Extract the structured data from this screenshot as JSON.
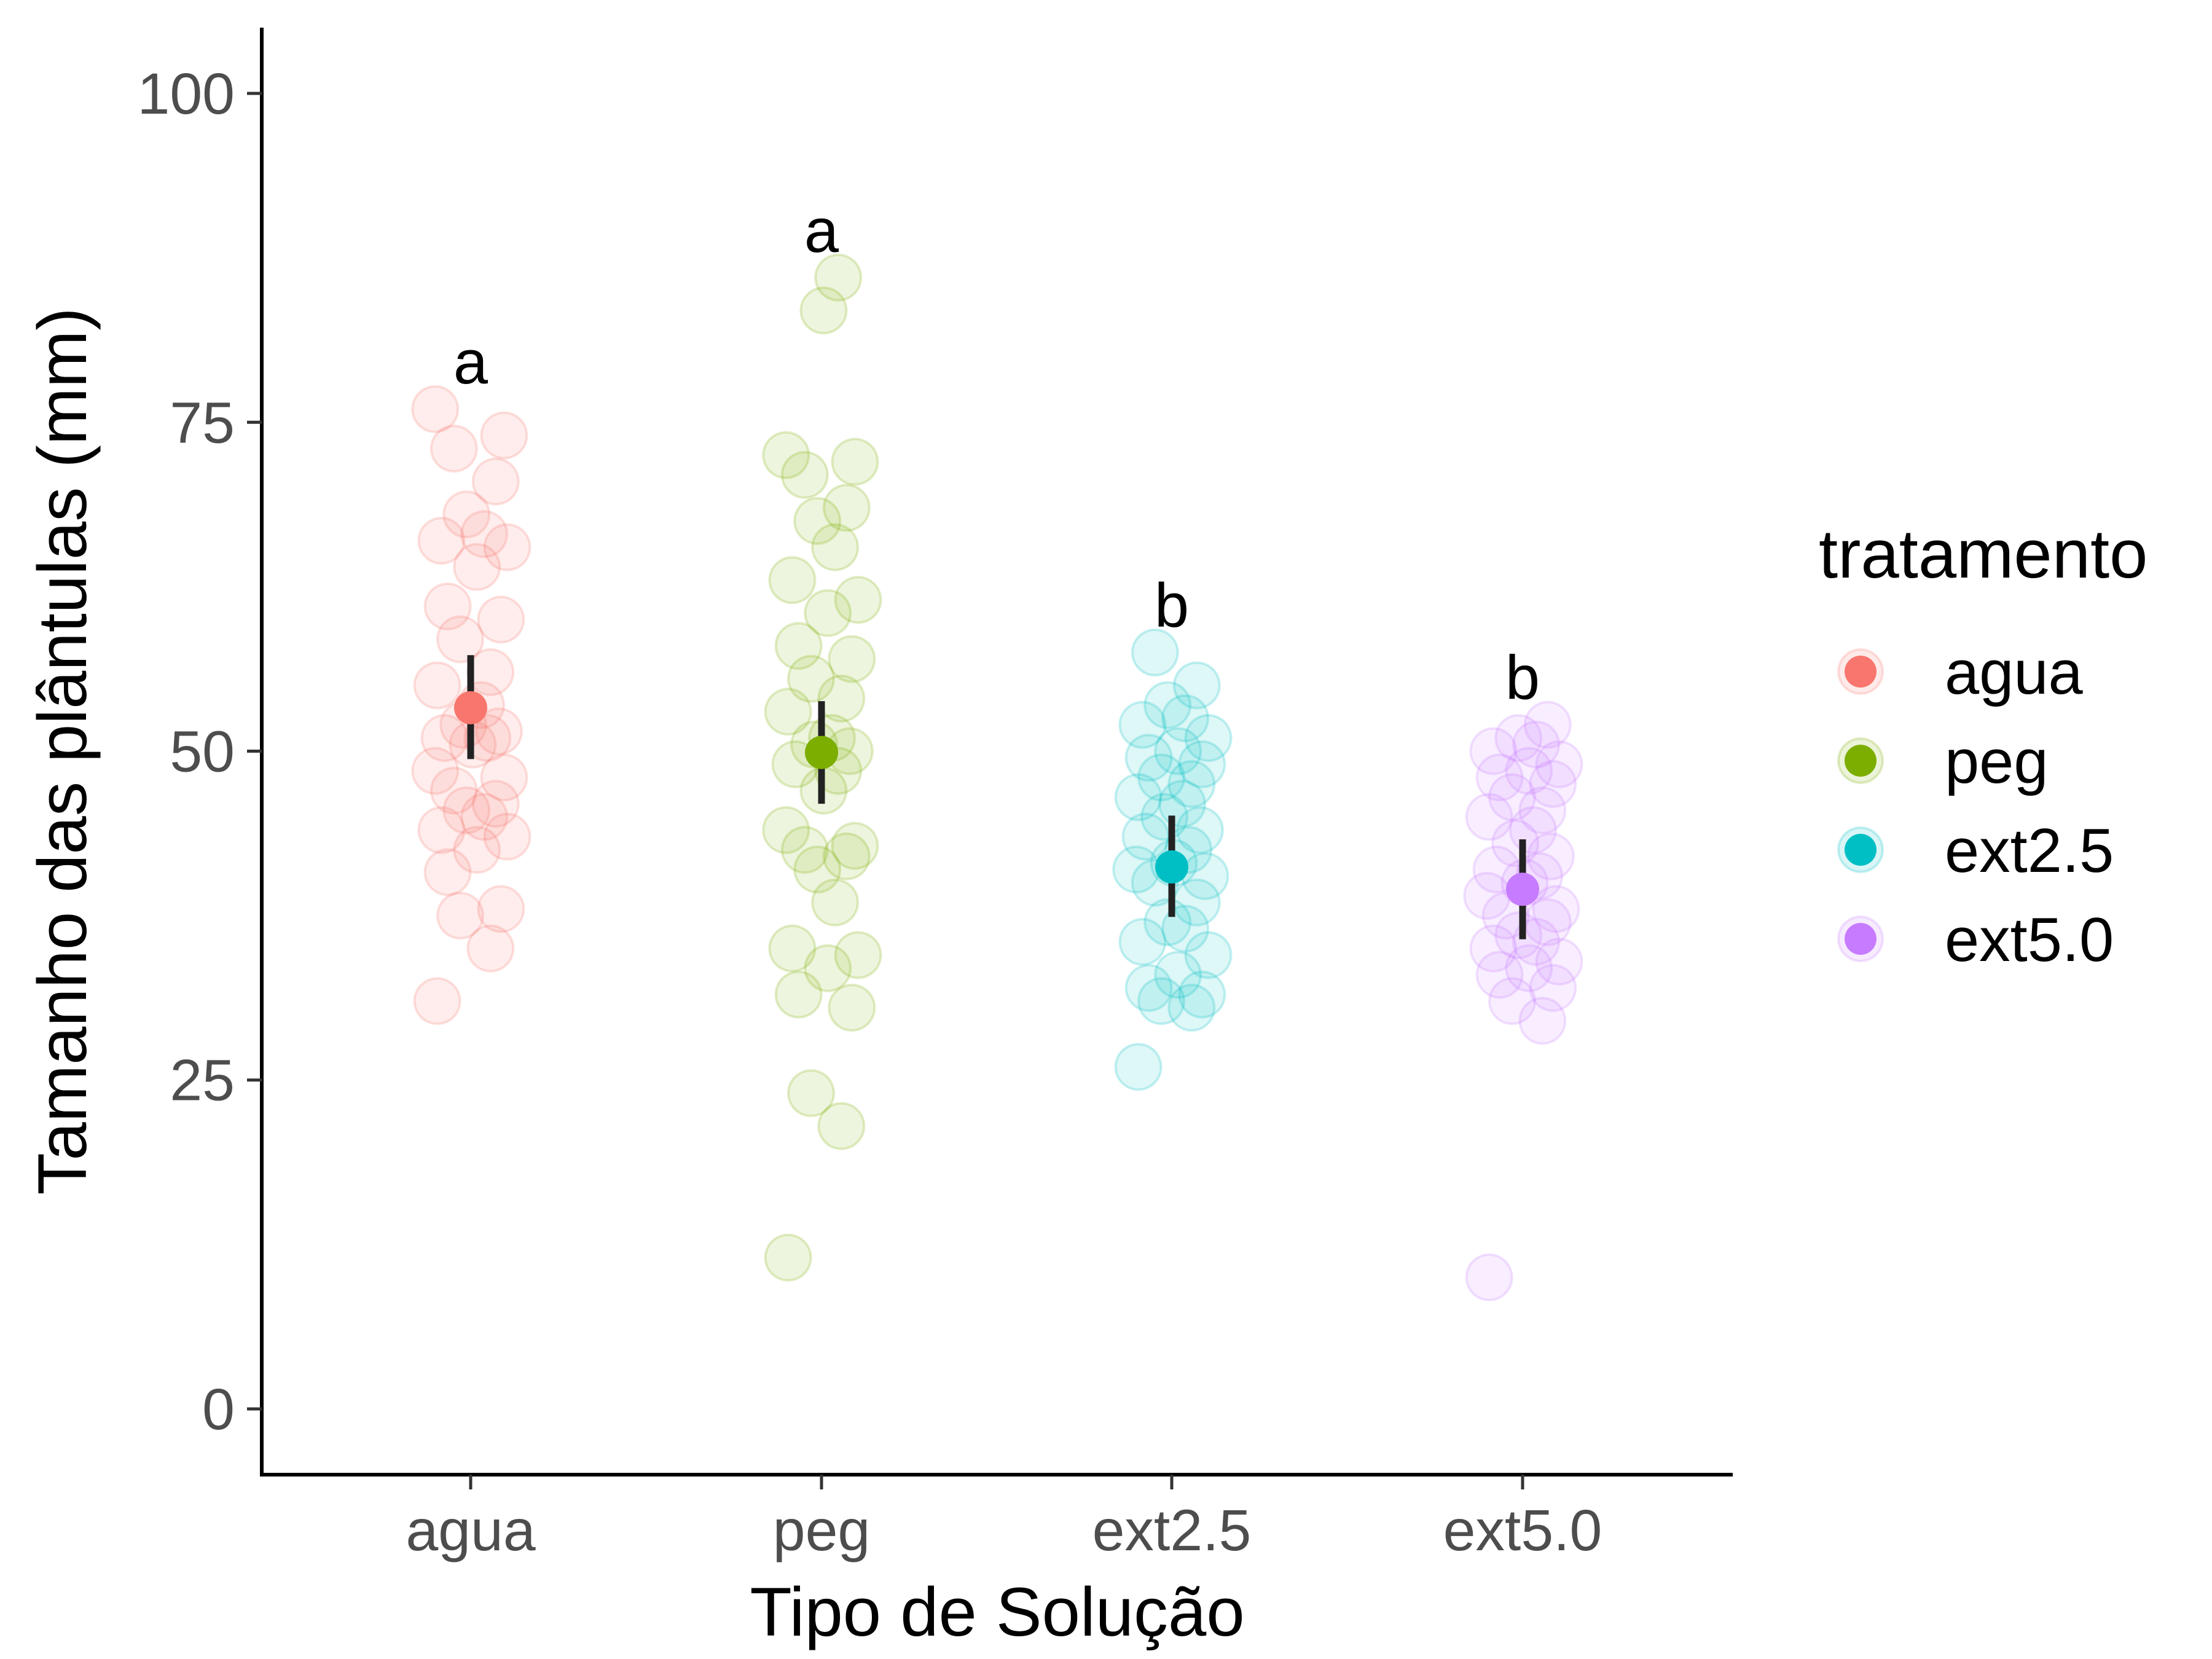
{
  "chart_data": {
    "type": "scatter",
    "xlabel": "Tipo de Solução",
    "ylabel": "Tamanho das plântulas (mm)",
    "categories": [
      "agua",
      "peg",
      "ext2.5",
      "ext5.0"
    ],
    "ylim": [
      -5,
      105
    ],
    "yticks": [
      0,
      25,
      50,
      75,
      100
    ],
    "grid": false,
    "legend": {
      "title": "tratamento",
      "position": "right",
      "entries": [
        "agua",
        "peg",
        "ext2.5",
        "ext5.0"
      ]
    },
    "colors": {
      "agua": "#F8766D",
      "peg": "#7CAE00",
      "ext2.5": "#00BFC4",
      "ext5.0": "#C77CFF"
    },
    "error_bar_color": "#222222",
    "series": [
      {
        "name": "agua",
        "mean": 53.3,
        "ci": [
          49.4,
          57.3
        ],
        "significance": "a",
        "points": [
          31,
          35,
          37.5,
          38,
          40.8,
          42.5,
          43.5,
          44,
          45,
          45.5,
          46,
          47,
          48,
          48.5,
          50.5,
          51,
          51,
          51.5,
          52,
          53.5,
          55,
          56,
          58.5,
          60,
          61,
          64,
          65.5,
          66,
          66.5,
          68,
          70.5,
          73,
          74,
          76
        ]
      },
      {
        "name": "peg",
        "mean": 49.9,
        "ci": [
          46.0,
          53.8
        ],
        "significance": "a",
        "points": [
          11.5,
          21.5,
          24,
          30.5,
          31.5,
          33.5,
          34.5,
          35,
          38.5,
          41,
          42,
          42.5,
          42.8,
          44,
          47,
          48.5,
          49,
          50,
          50.5,
          51,
          53,
          54,
          55.5,
          57,
          58,
          60.5,
          61.5,
          63,
          65.5,
          67.5,
          68.5,
          71,
          72,
          72.5,
          83.5,
          86
        ]
      },
      {
        "name": "ext2.5",
        "mean": 41.2,
        "ci": [
          37.4,
          45.1
        ],
        "significance": "b",
        "points": [
          26,
          30.5,
          31,
          31.5,
          32,
          33,
          34.5,
          35.5,
          36.5,
          37,
          38.5,
          40,
          40.5,
          41,
          41.5,
          42.5,
          43.5,
          44,
          45,
          46,
          46.5,
          47.5,
          48,
          49,
          49.5,
          50,
          51,
          52,
          52.5,
          53.5,
          55,
          57.5
        ]
      },
      {
        "name": "ext5.0",
        "mean": 39.5,
        "ci": [
          35.7,
          43.3
        ],
        "significance": "b",
        "points": [
          10,
          29.5,
          31,
          32,
          33,
          33.5,
          34,
          35,
          35.5,
          36,
          37,
          37.5,
          38,
          39,
          40,
          40.5,
          41,
          42,
          43,
          44,
          45,
          45.5,
          46.5,
          47.5,
          48,
          48.5,
          49,
          50,
          50.5,
          51,
          52
        ]
      }
    ]
  }
}
